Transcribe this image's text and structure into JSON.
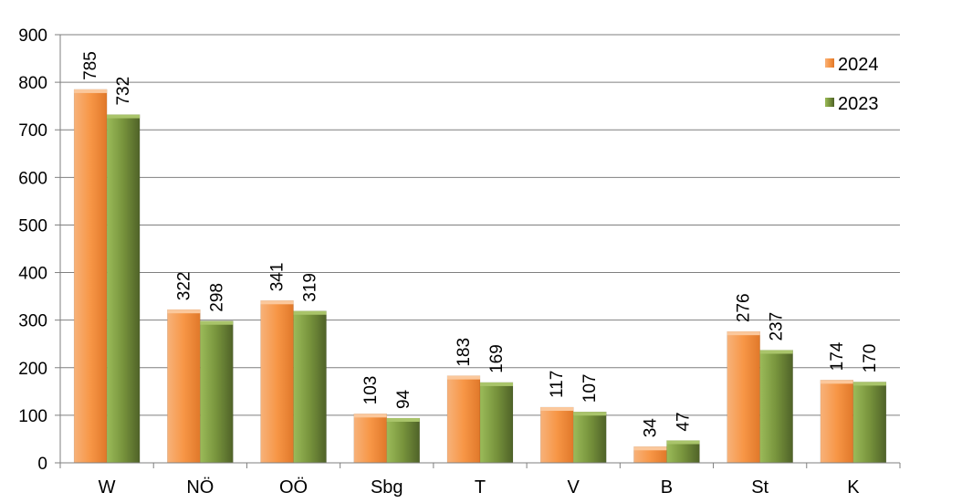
{
  "chart_data": {
    "type": "bar",
    "categories": [
      "W",
      "NÖ",
      "OÖ",
      "Sbg",
      "T",
      "V",
      "B",
      "St",
      "K"
    ],
    "series": [
      {
        "name": "2024",
        "values": [
          785,
          322,
          341,
          103,
          183,
          117,
          34,
          276,
          174
        ],
        "color": "#f79646"
      },
      {
        "name": "2023",
        "values": [
          732,
          298,
          319,
          94,
          169,
          107,
          47,
          237,
          170
        ],
        "color": "#77933c"
      }
    ],
    "title": "",
    "xlabel": "",
    "ylabel": "",
    "ylim": [
      0,
      900
    ],
    "yticks": [
      "0",
      "100",
      "200",
      "300",
      "400",
      "500",
      "600",
      "700",
      "800",
      "900"
    ],
    "grid": true,
    "legend_position": "top-right"
  }
}
